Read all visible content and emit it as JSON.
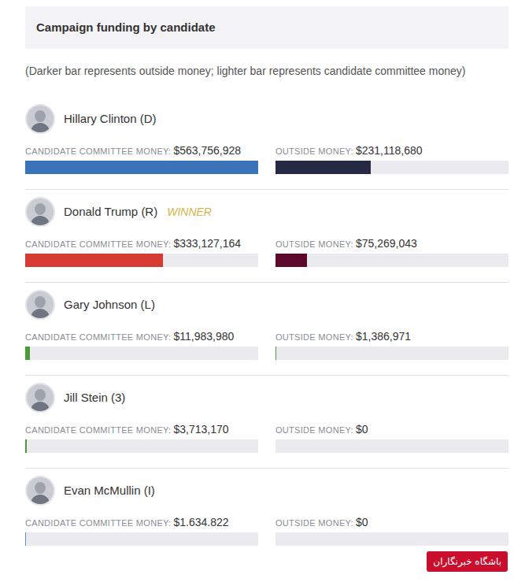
{
  "chart_data": {
    "type": "bar",
    "orientation": "horizontal",
    "title": "Campaign funding by candidate",
    "subtitle": "(Darker bar represents outside money; lighter bar represents candidate committee money)",
    "categories": [
      "Hillary Clinton (D)",
      "Donald Trump (R)",
      "Gary Johnson (L)",
      "Jill Stein (3)",
      "Evan McMullin (I)"
    ],
    "series": [
      {
        "name": "CANDIDATE COMMITTEE MONEY:",
        "values": [
          563756928,
          333127164,
          11983980,
          3713170,
          1634822
        ],
        "value_labels": [
          "$563,756,928",
          "$333,127,164",
          "$11,983,980",
          "$3,713,170",
          "$1.634.822"
        ],
        "colors": [
          "#3a73b8",
          "#d63b33",
          "#4a9c3a",
          "#4a9c3a",
          "#5f8fbf"
        ]
      },
      {
        "name": "OUTSIDE MONEY:",
        "values": [
          231118680,
          75269043,
          1386971,
          0,
          0
        ],
        "value_labels": [
          "$231,118,680",
          "$75,269,043",
          "$1,386,971",
          "$0",
          "$0"
        ],
        "colors": [
          "#252a42",
          "#5c0a2c",
          "#4a9c3a",
          "#4a9c3a",
          "#5f8fbf"
        ]
      }
    ],
    "annotations": [
      {
        "text": "WINNER",
        "category": "Donald Trump (R)"
      }
    ],
    "watermark": "باشگاه خبرنگاران",
    "xlim": [
      0,
      563756928
    ],
    "xticks": [],
    "tick_labels": false,
    "grid": false,
    "data_labels": true
  }
}
